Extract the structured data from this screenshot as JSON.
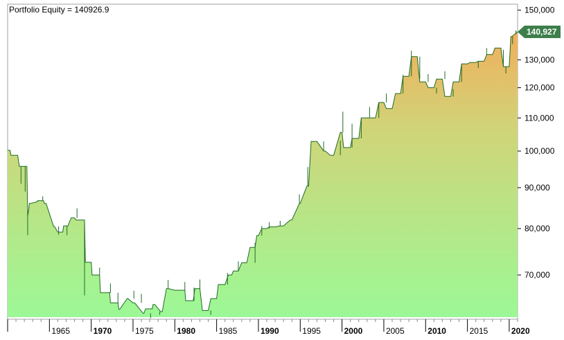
{
  "chart_data": {
    "type": "area",
    "title": "Portfolio Equity = 140926.9",
    "last_value_label": "140,927",
    "y_scale": "log",
    "ylim": [
      62000,
      152000
    ],
    "xlim": [
      1960.0,
      2021.0
    ],
    "y_ticks": [
      {
        "value": 150000,
        "label": "150,000"
      },
      {
        "value": 130000,
        "label": "130,000"
      },
      {
        "value": 120000,
        "label": "120,000"
      },
      {
        "value": 110000,
        "label": "110,000"
      },
      {
        "value": 100000,
        "label": "100,000"
      },
      {
        "value": 90000,
        "label": "90,000"
      },
      {
        "value": 80000,
        "label": "80,000"
      },
      {
        "value": 70000,
        "label": "70,000"
      }
    ],
    "x_ticks": [
      {
        "value": 1965,
        "label": "1965",
        "major": false
      },
      {
        "value": 1970,
        "label": "1970",
        "major": true
      },
      {
        "value": 1975,
        "label": "1975",
        "major": false
      },
      {
        "value": 1980,
        "label": "1980",
        "major": true
      },
      {
        "value": 1985,
        "label": "1985",
        "major": false
      },
      {
        "value": 1990,
        "label": "1990",
        "major": true
      },
      {
        "value": 1995,
        "label": "1995",
        "major": false
      },
      {
        "value": 2000,
        "label": "2000",
        "major": true
      },
      {
        "value": 2005,
        "label": "2005",
        "major": false
      },
      {
        "value": 2010,
        "label": "2010",
        "major": true
      },
      {
        "value": 2015,
        "label": "2015",
        "major": false
      },
      {
        "value": 2020,
        "label": "2020",
        "major": true
      }
    ],
    "series": [
      {
        "x": [
          1960.0,
          1960.3,
          1960.4,
          1961.2,
          1961.4,
          1962.3,
          1962.4,
          1962.5,
          1962.6,
          1962.7,
          1963.5,
          1963.6,
          1964.3,
          1964.4,
          1964.6,
          1965.5,
          1965.6,
          1966.0,
          1966.6,
          1966.7,
          1967.2,
          1967.6,
          1968.0,
          1968.2,
          1969.2,
          1969.3,
          1970.0,
          1970.1,
          1971.0,
          1971.1,
          1972.0,
          1972.2,
          1972.3,
          1973.2,
          1973.3,
          1973.4,
          1974.3,
          1974.4,
          1975.0,
          1975.2,
          1976.2,
          1976.3,
          1976.5,
          1977.3,
          1977.4,
          1977.6,
          1978.3,
          1978.5,
          1979.0,
          1979.2,
          1980.0,
          1980.3,
          1981.2,
          1981.3,
          1982.2,
          1982.4,
          1983.0,
          1983.3,
          1984.0,
          1984.3,
          1985.0,
          1985.2,
          1986.0,
          1986.4,
          1986.8,
          1987.0,
          1987.6,
          1988.0,
          1988.6,
          1989.0,
          1989.6,
          1989.8,
          1990.0,
          1990.4,
          1991.0,
          1991.3,
          1992.0,
          1992.6,
          1993.0,
          1993.8,
          1994.0,
          1994.9,
          1995.0,
          1995.8,
          1996.0,
          1996.3,
          1997.0,
          1997.8,
          1998.0,
          1998.6,
          1999.0,
          1999.8,
          2000.0,
          2000.2,
          2001.0,
          2001.2,
          2002.0,
          2002.3,
          2003.0,
          2003.3,
          2004.0,
          2004.4,
          2005.0,
          2005.3,
          2006.0,
          2006.4,
          2007.0,
          2007.3,
          2008.0,
          2008.3,
          2009.0,
          2009.3,
          2010.0,
          2010.3,
          2011.0,
          2011.3,
          2012.0,
          2012.3,
          2013.0,
          2013.3,
          2014.0,
          2014.3,
          2015.0,
          2015.3,
          2016.0,
          2016.3,
          2017.0,
          2017.3,
          2018.0,
          2018.3,
          2019.0,
          2019.3,
          2020.0,
          2020.2,
          2020.3,
          2021.0
        ],
        "y": [
          100200,
          100200,
          98800,
          98800,
          95700,
          95700,
          83000,
          84200,
          86000,
          86000,
          86400,
          86700,
          86700,
          86000,
          86000,
          80500,
          80500,
          79200,
          79200,
          80600,
          80600,
          82500,
          82500,
          82000,
          82000,
          72600,
          72600,
          70000,
          70000,
          66500,
          66500,
          66600,
          64600,
          64600,
          63400,
          63400,
          65400,
          65400,
          64600,
          64600,
          62700,
          62700,
          63500,
          63500,
          64300,
          64300,
          63000,
          63000,
          67300,
          67300,
          67000,
          67000,
          67000,
          65000,
          65000,
          67300,
          67300,
          63200,
          63200,
          65400,
          65400,
          68100,
          68100,
          70000,
          70000,
          70800,
          70800,
          72500,
          72500,
          75800,
          75800,
          78400,
          78400,
          80000,
          80000,
          80400,
          80400,
          80600,
          80600,
          82000,
          82000,
          86000,
          86000,
          90400,
          90400,
          102800,
          102800,
          100000,
          100000,
          98800,
          98800,
          105500,
          105500,
          101000,
          101000,
          103700,
          103700,
          110000,
          110000,
          110000,
          110000,
          115000,
          115000,
          113000,
          113000,
          118000,
          118000,
          124000,
          124000,
          131200,
          131200,
          122000,
          122000,
          120000,
          120000,
          123000,
          123000,
          117000,
          117000,
          122000,
          122000,
          128500,
          128500,
          129000,
          129000,
          129500,
          129500,
          132000,
          132000,
          134500,
          134500,
          127500,
          127500,
          139000,
          139000,
          140927
        ]
      }
    ],
    "spikes": [
      [
        1961.6,
        95700,
        91000
      ],
      [
        1962.1,
        95700,
        89000
      ],
      [
        1962.4,
        84200,
        78500
      ],
      [
        1964.2,
        86700,
        87800
      ],
      [
        1966.1,
        80500,
        78600
      ],
      [
        1967.1,
        80600,
        78500
      ],
      [
        1968.3,
        82500,
        84800
      ],
      [
        1969.2,
        82000,
        66000
      ],
      [
        1971.0,
        70000,
        71500
      ],
      [
        1972.3,
        66500,
        68300
      ],
      [
        1973.2,
        64600,
        66500
      ],
      [
        1975.1,
        65400,
        66900
      ],
      [
        1976.0,
        64600,
        66300
      ],
      [
        1977.1,
        62700,
        61800
      ],
      [
        1978.2,
        63000,
        62400
      ],
      [
        1979.2,
        67300,
        69000
      ],
      [
        1981.2,
        67000,
        68600
      ],
      [
        1982.3,
        65000,
        67500
      ],
      [
        1983.0,
        67300,
        69100
      ],
      [
        1984.3,
        63200,
        62400
      ],
      [
        1986.3,
        68100,
        70400
      ],
      [
        1987.6,
        70800,
        72800
      ],
      [
        1989.6,
        72500,
        76800
      ],
      [
        1990.4,
        78400,
        80600
      ],
      [
        1991.3,
        80000,
        81500
      ],
      [
        1992.6,
        80600,
        81800
      ],
      [
        1994.9,
        86000,
        88300
      ],
      [
        1995.9,
        90400,
        95500
      ],
      [
        1997.8,
        102800,
        100000
      ],
      [
        1999.8,
        98800,
        103000
      ],
      [
        2000.1,
        105500,
        112000
      ],
      [
        2001.2,
        101000,
        108200
      ],
      [
        2002.3,
        103700,
        110000
      ],
      [
        2003.3,
        110000,
        113500
      ],
      [
        2004.4,
        110000,
        115000
      ],
      [
        2005.3,
        115000,
        118000
      ],
      [
        2007.3,
        118000,
        124500
      ],
      [
        2008.3,
        124000,
        133500
      ],
      [
        2009.3,
        131200,
        123000
      ],
      [
        2010.3,
        122000,
        124800
      ],
      [
        2011.3,
        120000,
        118000
      ],
      [
        2012.3,
        123000,
        125800
      ],
      [
        2013.3,
        117000,
        119500
      ],
      [
        2014.3,
        122000,
        128500
      ],
      [
        2016.3,
        129500,
        127000
      ],
      [
        2017.3,
        132000,
        134500
      ],
      [
        2019.3,
        127500,
        133800
      ],
      [
        2019.6,
        127500,
        125000
      ],
      [
        2020.4,
        139000,
        136000
      ],
      [
        2020.8,
        140000,
        141500
      ]
    ]
  }
}
